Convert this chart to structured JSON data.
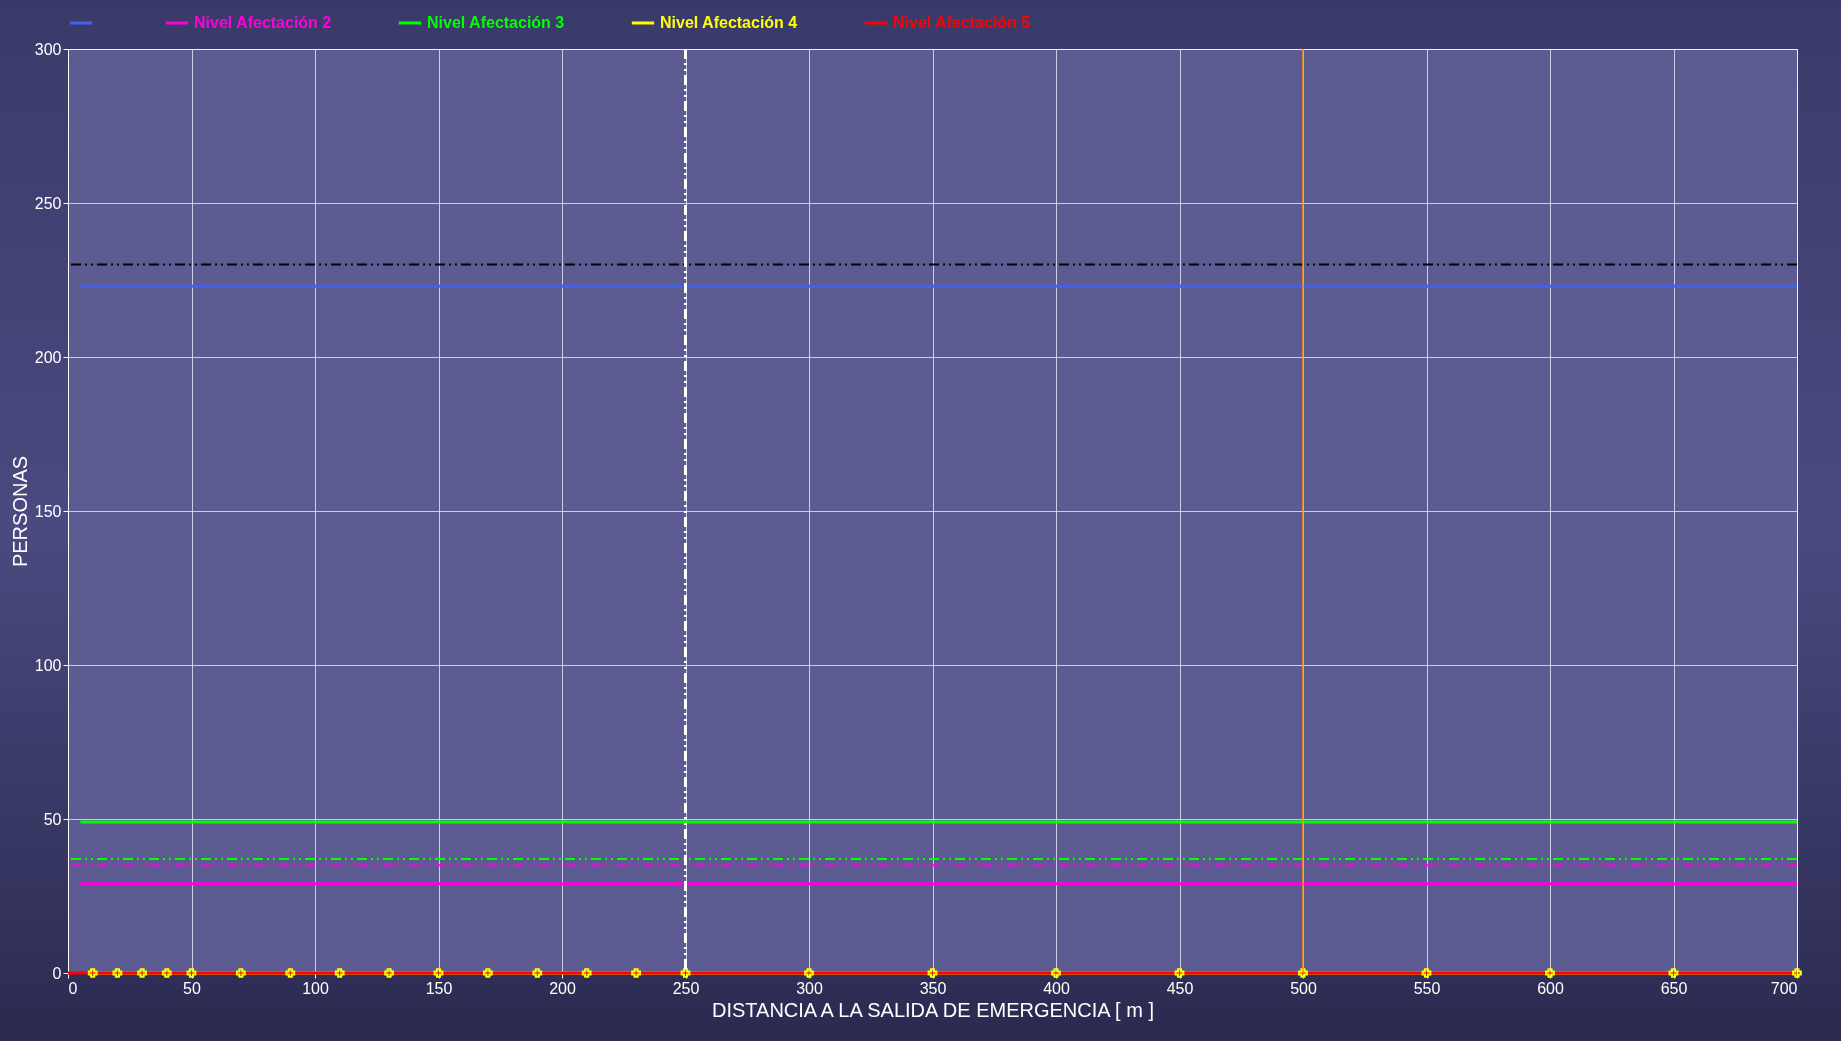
{
  "chart_data": {
    "type": "line",
    "xlabel": "DISTANCIA A LA SALIDA DE EMERGENCIA [ m ]",
    "ylabel": "PERSONAS",
    "xlim": [
      0,
      700
    ],
    "xticks": [
      0,
      50,
      100,
      150,
      200,
      250,
      300,
      350,
      400,
      450,
      500,
      550,
      600,
      650,
      700
    ],
    "ylim": [
      0,
      300
    ],
    "yticks": [
      0,
      50,
      100,
      150,
      200,
      250,
      300
    ],
    "grid": true,
    "legend": "top",
    "series": [
      {
        "color": "#4060f0",
        "x": [
          5,
          700
        ],
        "values": [
          223,
          223
        ]
      },
      {
        "name": "Nivel Afectación 2",
        "color": "#ff00dd",
        "x": [
          5,
          700
        ],
        "values": [
          29,
          29
        ]
      },
      {
        "name": "Nivel Afectación 3",
        "color": "#00ff00",
        "x": [
          5,
          700
        ],
        "values": [
          49,
          49
        ]
      },
      {
        "name": "Nivel Afectación 4",
        "color": "#ffff00",
        "marker": "cross",
        "x": [
          10,
          20,
          30,
          40,
          50,
          70,
          90,
          110,
          130,
          150,
          170,
          190,
          210,
          230,
          250,
          300,
          350,
          400,
          450,
          500,
          550,
          600,
          650,
          700
        ],
        "values": [
          0,
          0,
          0,
          0,
          0,
          0,
          0,
          0,
          0,
          0,
          0,
          0,
          0,
          0,
          0,
          0,
          0,
          0,
          0,
          0,
          0,
          0,
          0,
          0
        ]
      },
      {
        "name": "Nivel Afectación 5",
        "color": "#ff0000",
        "x": [
          0,
          700
        ],
        "values": [
          0,
          0
        ]
      }
    ],
    "ref_lines": [
      {
        "axis": "y",
        "value": 230,
        "color": "#000000",
        "line_style": "dashed"
      },
      {
        "axis": "y",
        "value": 37,
        "color": "#00ff00",
        "line_style": "dashed"
      },
      {
        "axis": "y",
        "value": 35,
        "color": "#ff00dd",
        "line_style": "dashed"
      },
      {
        "axis": "x",
        "value": 250,
        "color": "#ffffff",
        "line_style": "dashed"
      },
      {
        "axis": "x",
        "value": 500,
        "color": "#ff9900",
        "line_style": "solid"
      }
    ]
  }
}
